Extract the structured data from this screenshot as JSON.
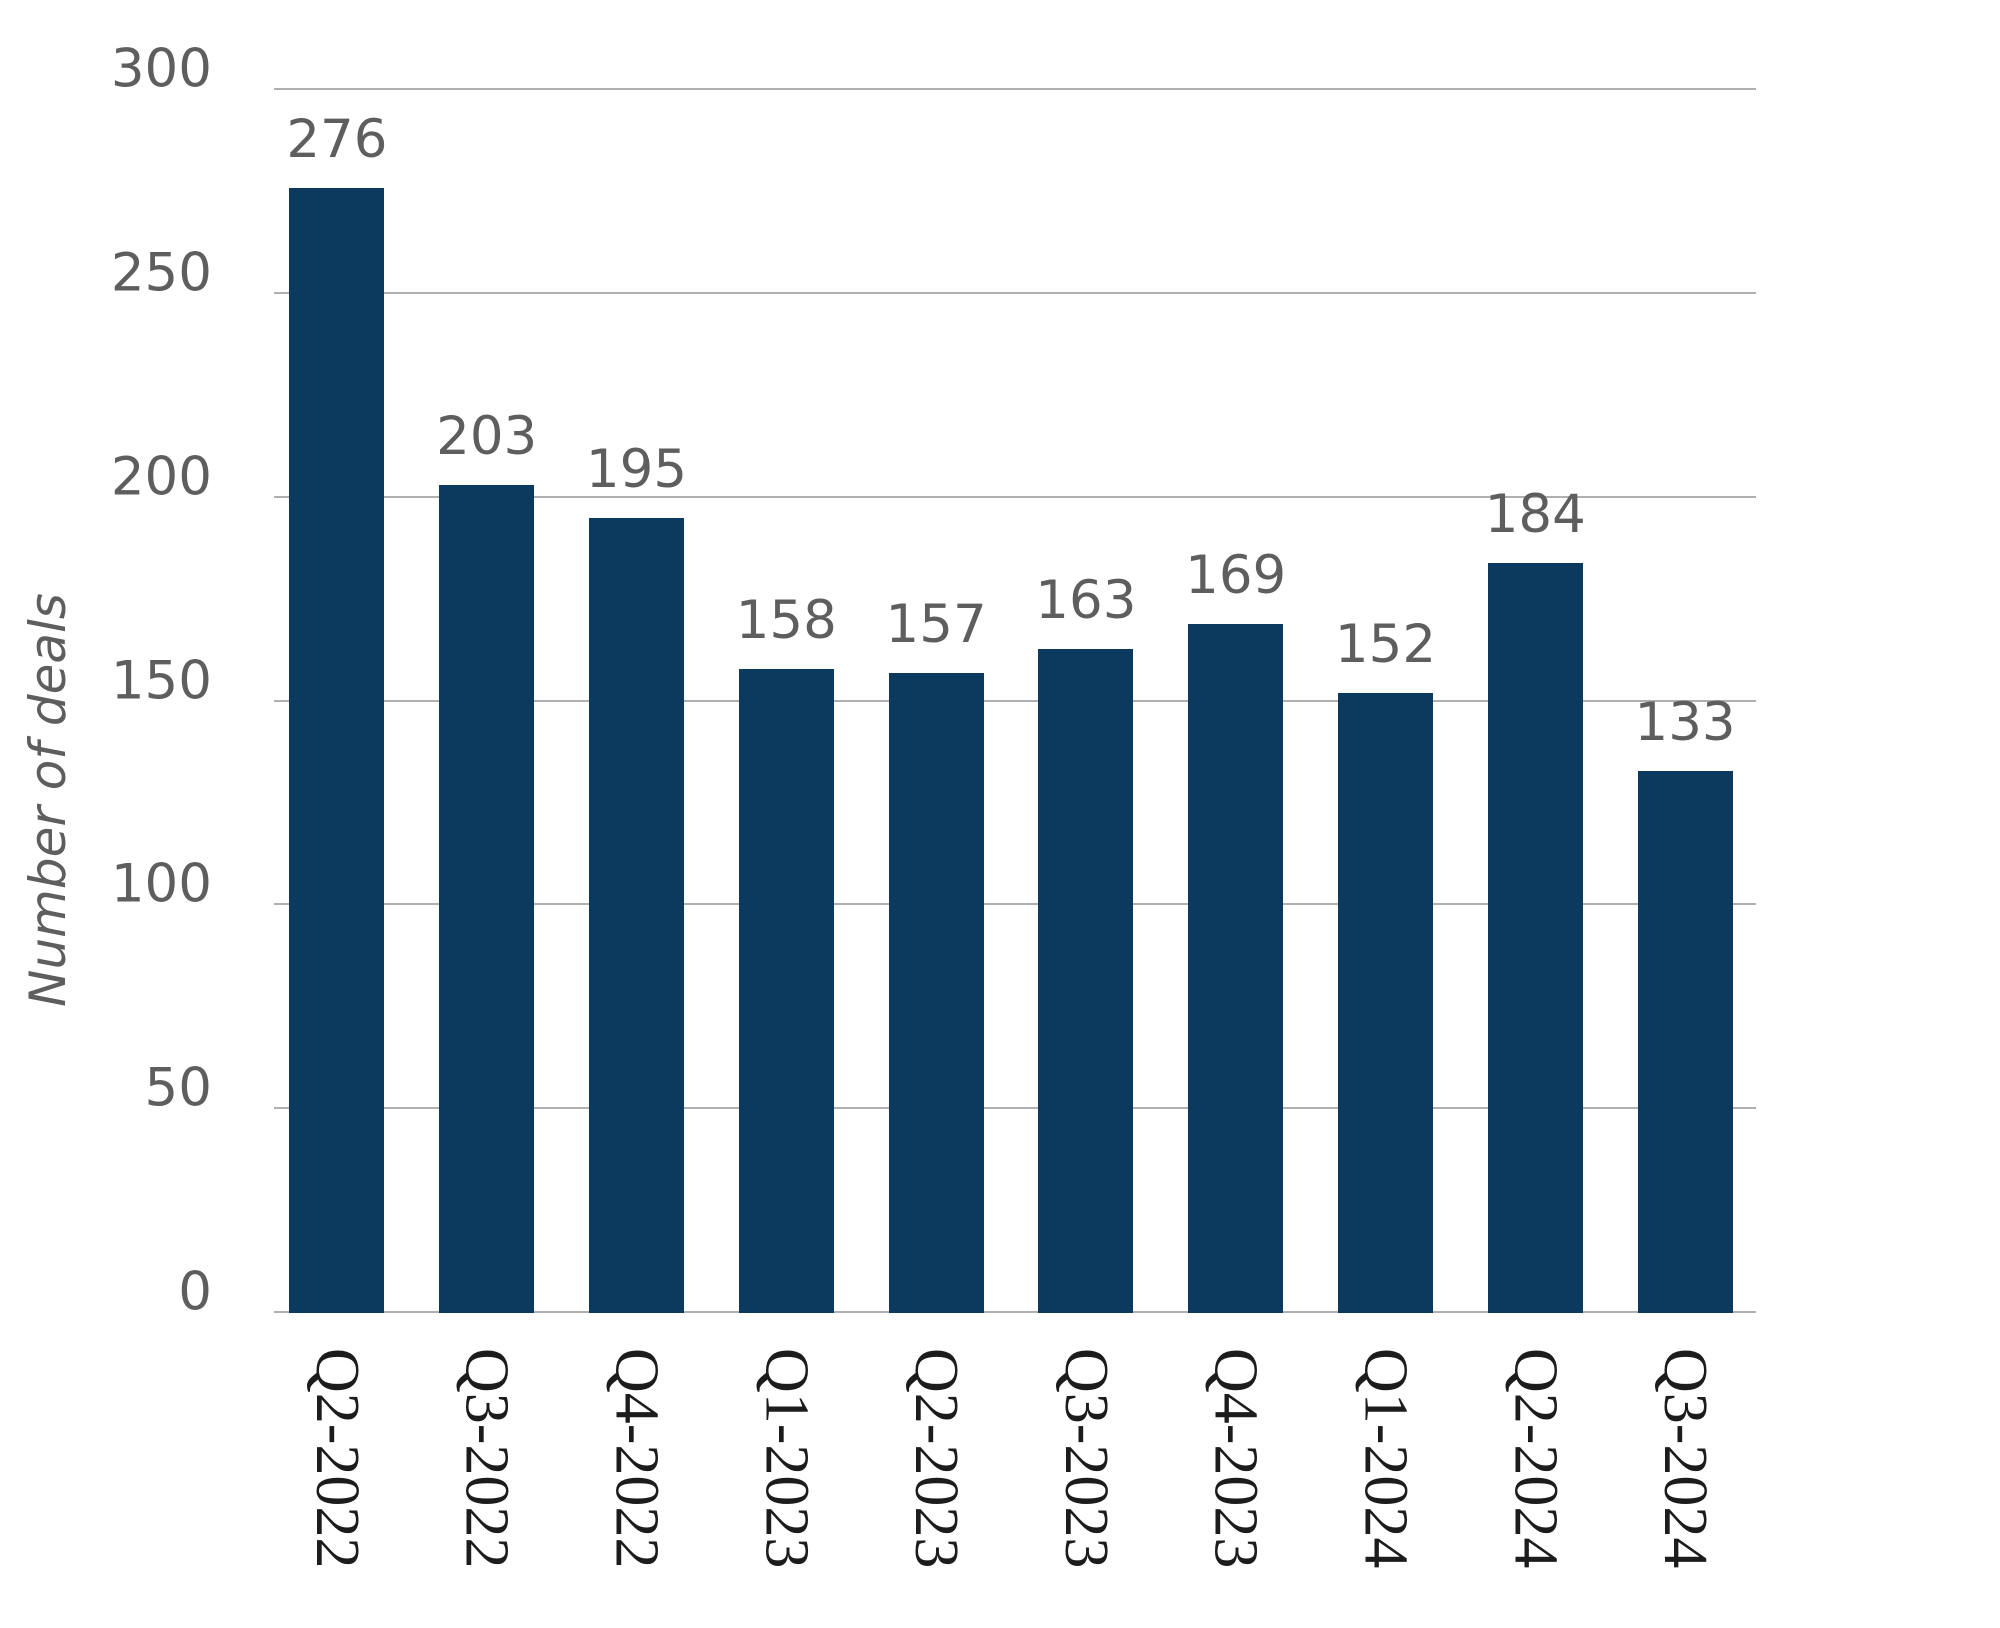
{
  "chart_data": {
    "type": "bar",
    "categories": [
      "Q2-2022",
      "Q3-2022",
      "Q4-2022",
      "Q1-2023",
      "Q2-2023",
      "Q3-2023",
      "Q4-2023",
      "Q1-2024",
      "Q2-2024",
      "Q3-2024"
    ],
    "values": [
      276,
      203,
      195,
      158,
      157,
      163,
      169,
      152,
      184,
      133
    ],
    "title": "",
    "xlabel": "",
    "ylabel": "Number of deals",
    "ylim": [
      0,
      300
    ],
    "yticks": [
      0,
      50,
      100,
      150,
      200,
      250,
      300
    ],
    "grid": true,
    "legend": "none",
    "colors": {
      "bar": "#0c3a5e",
      "grid_line": "#b0b0b0",
      "value_label": "#5e5e5e",
      "y_tick_label": "#5e5e5e",
      "x_tick_label": "#1c1c1c",
      "background": "#ffffff"
    }
  }
}
